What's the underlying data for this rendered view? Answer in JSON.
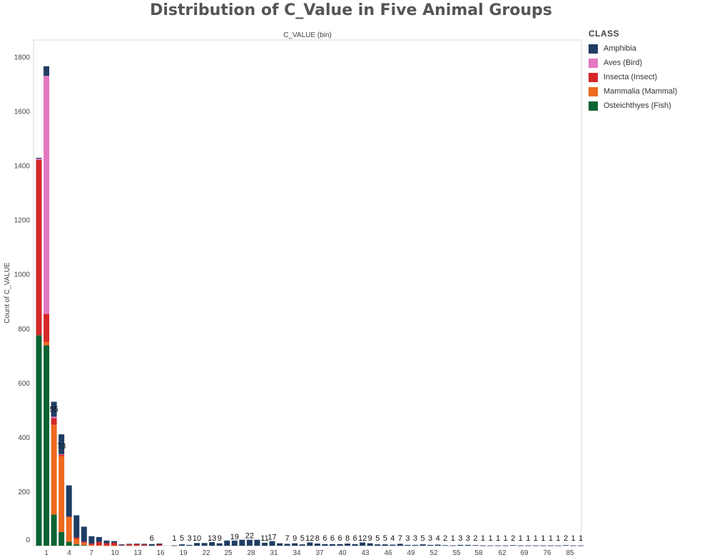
{
  "chart_data": {
    "type": "bar",
    "stacked": true,
    "title": "Distribution of C_Value in Five Animal Groups",
    "column_header": "C_VALUE (bin)",
    "ylabel": "Count of C_VALUE",
    "ylim": [
      0,
      1850
    ],
    "yticks": [
      0,
      200,
      400,
      600,
      800,
      1000,
      1200,
      1400,
      1600,
      1800
    ],
    "xtick_labels": [
      "1",
      "4",
      "7",
      "10",
      "13",
      "16",
      "19",
      "22",
      "25",
      "28",
      "31",
      "34",
      "37",
      "40",
      "43",
      "46",
      "49",
      "52",
      "55",
      "58",
      "62",
      "69",
      "76",
      "85"
    ],
    "grid": false,
    "legend": {
      "title": "CLASS",
      "position": "right",
      "entries": [
        {
          "name": "Amphibia",
          "color": "#1f3d64"
        },
        {
          "name": "Aves (Bird)",
          "color": "#e377c2"
        },
        {
          "name": "Insecta (Insect)",
          "color": "#d62728"
        },
        {
          "name": "Mammalia (Mammal)",
          "color": "#ee6a1e"
        },
        {
          "name": "Osteichthyes (Fish)",
          "color": "#0b6333"
        }
      ]
    },
    "series_order_bottom_to_top": [
      "Osteichthyes (Fish)",
      "Mammalia (Mammal)",
      "Insecta (Insect)",
      "Aves (Bird)",
      "Amphibia"
    ],
    "bars": [
      {
        "stack": {
          "Osteichthyes (Fish)": 775,
          "Mammalia (Mammal)": 0,
          "Insecta (Insect)": 645,
          "Aves (Bird)": 5,
          "Amphibia": 3
        }
      },
      {
        "stack": {
          "Osteichthyes (Fish)": 738,
          "Mammalia (Mammal)": 12,
          "Insecta (Insect)": 103,
          "Aves (Bird)": 877,
          "Amphibia": 35
        }
      },
      {
        "stack": {
          "Osteichthyes (Fish)": 115,
          "Mammalia (Mammal)": 330,
          "Insecta (Insect)": 25,
          "Aves (Bird)": 5,
          "Amphibia": 55
        },
        "label": "55"
      },
      {
        "stack": {
          "Osteichthyes (Fish)": 50,
          "Mammalia (Mammal)": 280,
          "Insecta (Insect)": 5,
          "Aves (Bird)": 2,
          "Amphibia": 73
        },
        "label": "73"
      },
      {
        "stack": {
          "Osteichthyes (Fish)": 15,
          "Mammalia (Mammal)": 90,
          "Insecta (Insect)": 2,
          "Aves (Bird)": 0,
          "Amphibia": 115
        }
      },
      {
        "stack": {
          "Osteichthyes (Fish)": 5,
          "Mammalia (Mammal)": 20,
          "Insecta (Insect)": 5,
          "Aves (Bird)": 0,
          "Amphibia": 82
        }
      },
      {
        "stack": {
          "Osteichthyes (Fish)": 2,
          "Mammalia (Mammal)": 8,
          "Insecta (Insect)": 5,
          "Aves (Bird)": 0,
          "Amphibia": 55
        }
      },
      {
        "stack": {
          "Osteichthyes (Fish)": 0,
          "Mammalia (Mammal)": 3,
          "Insecta (Insect)": 5,
          "Aves (Bird)": 0,
          "Amphibia": 27
        }
      },
      {
        "stack": {
          "Osteichthyes (Fish)": 0,
          "Mammalia (Mammal)": 2,
          "Insecta (Insect)": 12,
          "Aves (Bird)": 0,
          "Amphibia": 18
        }
      },
      {
        "stack": {
          "Osteichthyes (Fish)": 0,
          "Mammalia (Mammal)": 1,
          "Insecta (Insect)": 8,
          "Aves (Bird)": 0,
          "Amphibia": 10
        }
      },
      {
        "stack": {
          "Osteichthyes (Fish)": 0,
          "Mammalia (Mammal)": 1,
          "Insecta (Insect)": 10,
          "Aves (Bird)": 0,
          "Amphibia": 6
        }
      },
      {
        "stack": {
          "Osteichthyes (Fish)": 0,
          "Mammalia (Mammal)": 0,
          "Insecta (Insect)": 2,
          "Aves (Bird)": 0,
          "Amphibia": 3
        }
      },
      {
        "stack": {
          "Osteichthyes (Fish)": 0,
          "Mammalia (Mammal)": 0,
          "Insecta (Insect)": 5,
          "Aves (Bird)": 0,
          "Amphibia": 2
        }
      },
      {
        "stack": {
          "Osteichthyes (Fish)": 0,
          "Mammalia (Mammal)": 0,
          "Insecta (Insect)": 6,
          "Aves (Bird)": 0,
          "Amphibia": 2
        }
      },
      {
        "stack": {
          "Osteichthyes (Fish)": 0,
          "Mammalia (Mammal)": 0,
          "Insecta (Insect)": 4,
          "Aves (Bird)": 0,
          "Amphibia": 3
        }
      },
      {
        "stack": {
          "Osteichthyes (Fish)": 0,
          "Mammalia (Mammal)": 0,
          "Insecta (Insect)": 0,
          "Aves (Bird)": 0,
          "Amphibia": 6
        },
        "label": "6"
      },
      {
        "stack": {
          "Osteichthyes (Fish)": 0,
          "Mammalia (Mammal)": 0,
          "Insecta (Insect)": 4,
          "Aves (Bird)": 0,
          "Amphibia": 4
        }
      },
      {
        "stack": {
          "Osteichthyes (Fish)": 0,
          "Mammalia (Mammal)": 0,
          "Insecta (Insect)": 0,
          "Aves (Bird)": 0,
          "Amphibia": 0
        }
      },
      {
        "stack": {
          "Osteichthyes (Fish)": 0,
          "Mammalia (Mammal)": 0,
          "Insecta (Insect)": 0,
          "Aves (Bird)": 0,
          "Amphibia": 1
        },
        "label": "1"
      },
      {
        "stack": {
          "Osteichthyes (Fish)": 0,
          "Mammalia (Mammal)": 0,
          "Insecta (Insect)": 0,
          "Aves (Bird)": 0,
          "Amphibia": 5
        },
        "label": "5"
      },
      {
        "stack": {
          "Osteichthyes (Fish)": 0,
          "Mammalia (Mammal)": 0,
          "Insecta (Insect)": 0,
          "Aves (Bird)": 0,
          "Amphibia": 3
        },
        "label": "3"
      },
      {
        "stack": {
          "Osteichthyes (Fish)": 0,
          "Mammalia (Mammal)": 0,
          "Insecta (Insect)": 0,
          "Aves (Bird)": 0,
          "Amphibia": 10
        },
        "label": "10"
      },
      {
        "stack": {
          "Osteichthyes (Fish)": 0,
          "Mammalia (Mammal)": 0,
          "Insecta (Insect)": 0,
          "Aves (Bird)": 0,
          "Amphibia": 10
        }
      },
      {
        "stack": {
          "Osteichthyes (Fish)": 0,
          "Mammalia (Mammal)": 0,
          "Insecta (Insect)": 0,
          "Aves (Bird)": 0,
          "Amphibia": 13
        },
        "label": "13"
      },
      {
        "stack": {
          "Osteichthyes (Fish)": 0,
          "Mammalia (Mammal)": 0,
          "Insecta (Insect)": 0,
          "Aves (Bird)": 0,
          "Amphibia": 9
        },
        "label": "9"
      },
      {
        "stack": {
          "Osteichthyes (Fish)": 0,
          "Mammalia (Mammal)": 0,
          "Insecta (Insect)": 0,
          "Aves (Bird)": 0,
          "Amphibia": 19
        }
      },
      {
        "stack": {
          "Osteichthyes (Fish)": 0,
          "Mammalia (Mammal)": 0,
          "Insecta (Insect)": 0,
          "Aves (Bird)": 0,
          "Amphibia": 19
        },
        "label": "19"
      },
      {
        "stack": {
          "Osteichthyes (Fish)": 0,
          "Mammalia (Mammal)": 0,
          "Insecta (Insect)": 0,
          "Aves (Bird)": 0,
          "Amphibia": 22
        }
      },
      {
        "stack": {
          "Osteichthyes (Fish)": 0,
          "Mammalia (Mammal)": 0,
          "Insecta (Insect)": 0,
          "Aves (Bird)": 0,
          "Amphibia": 22
        },
        "label": "22"
      },
      {
        "stack": {
          "Osteichthyes (Fish)": 0,
          "Mammalia (Mammal)": 0,
          "Insecta (Insect)": 0,
          "Aves (Bird)": 0,
          "Amphibia": 22
        }
      },
      {
        "stack": {
          "Osteichthyes (Fish)": 0,
          "Mammalia (Mammal)": 0,
          "Insecta (Insect)": 0,
          "Aves (Bird)": 0,
          "Amphibia": 11
        },
        "label": "11"
      },
      {
        "stack": {
          "Osteichthyes (Fish)": 0,
          "Mammalia (Mammal)": 0,
          "Insecta (Insect)": 0,
          "Aves (Bird)": 0,
          "Amphibia": 17
        },
        "label": "17"
      },
      {
        "stack": {
          "Osteichthyes (Fish)": 0,
          "Mammalia (Mammal)": 0,
          "Insecta (Insect)": 0,
          "Aves (Bird)": 0,
          "Amphibia": 9
        }
      },
      {
        "stack": {
          "Osteichthyes (Fish)": 0,
          "Mammalia (Mammal)": 0,
          "Insecta (Insect)": 0,
          "Aves (Bird)": 0,
          "Amphibia": 7
        },
        "label": "7"
      },
      {
        "stack": {
          "Osteichthyes (Fish)": 0,
          "Mammalia (Mammal)": 0,
          "Insecta (Insect)": 0,
          "Aves (Bird)": 0,
          "Amphibia": 9
        },
        "label": "9"
      },
      {
        "stack": {
          "Osteichthyes (Fish)": 0,
          "Mammalia (Mammal)": 0,
          "Insecta (Insect)": 0,
          "Aves (Bird)": 0,
          "Amphibia": 5
        },
        "label": "5"
      },
      {
        "stack": {
          "Osteichthyes (Fish)": 0,
          "Mammalia (Mammal)": 0,
          "Insecta (Insect)": 0,
          "Aves (Bird)": 0,
          "Amphibia": 12
        },
        "label": "12"
      },
      {
        "stack": {
          "Osteichthyes (Fish)": 0,
          "Mammalia (Mammal)": 0,
          "Insecta (Insect)": 0,
          "Aves (Bird)": 0,
          "Amphibia": 8
        },
        "label": "8"
      },
      {
        "stack": {
          "Osteichthyes (Fish)": 0,
          "Mammalia (Mammal)": 0,
          "Insecta (Insect)": 0,
          "Aves (Bird)": 0,
          "Amphibia": 6
        },
        "label": "6"
      },
      {
        "stack": {
          "Osteichthyes (Fish)": 0,
          "Mammalia (Mammal)": 0,
          "Insecta (Insect)": 0,
          "Aves (Bird)": 0,
          "Amphibia": 6
        },
        "label": "6"
      },
      {
        "stack": {
          "Osteichthyes (Fish)": 0,
          "Mammalia (Mammal)": 0,
          "Insecta (Insect)": 0,
          "Aves (Bird)": 0,
          "Amphibia": 6
        },
        "label": "6"
      },
      {
        "stack": {
          "Osteichthyes (Fish)": 0,
          "Mammalia (Mammal)": 0,
          "Insecta (Insect)": 0,
          "Aves (Bird)": 0,
          "Amphibia": 8
        },
        "label": "8"
      },
      {
        "stack": {
          "Osteichthyes (Fish)": 0,
          "Mammalia (Mammal)": 0,
          "Insecta (Insect)": 0,
          "Aves (Bird)": 0,
          "Amphibia": 6
        },
        "label": "6"
      },
      {
        "stack": {
          "Osteichthyes (Fish)": 0,
          "Mammalia (Mammal)": 0,
          "Insecta (Insect)": 0,
          "Aves (Bird)": 0,
          "Amphibia": 12
        },
        "label": "12"
      },
      {
        "stack": {
          "Osteichthyes (Fish)": 0,
          "Mammalia (Mammal)": 0,
          "Insecta (Insect)": 0,
          "Aves (Bird)": 0,
          "Amphibia": 9
        },
        "label": "9"
      },
      {
        "stack": {
          "Osteichthyes (Fish)": 0,
          "Mammalia (Mammal)": 0,
          "Insecta (Insect)": 0,
          "Aves (Bird)": 0,
          "Amphibia": 5
        },
        "label": "5"
      },
      {
        "stack": {
          "Osteichthyes (Fish)": 0,
          "Mammalia (Mammal)": 0,
          "Insecta (Insect)": 0,
          "Aves (Bird)": 0,
          "Amphibia": 5
        },
        "label": "5"
      },
      {
        "stack": {
          "Osteichthyes (Fish)": 0,
          "Mammalia (Mammal)": 0,
          "Insecta (Insect)": 0,
          "Aves (Bird)": 0,
          "Amphibia": 4
        },
        "label": "4"
      },
      {
        "stack": {
          "Osteichthyes (Fish)": 0,
          "Mammalia (Mammal)": 0,
          "Insecta (Insect)": 0,
          "Aves (Bird)": 0,
          "Amphibia": 7
        },
        "label": "7"
      },
      {
        "stack": {
          "Osteichthyes (Fish)": 0,
          "Mammalia (Mammal)": 0,
          "Insecta (Insect)": 0,
          "Aves (Bird)": 0,
          "Amphibia": 3
        },
        "label": "3"
      },
      {
        "stack": {
          "Osteichthyes (Fish)": 0,
          "Mammalia (Mammal)": 0,
          "Insecta (Insect)": 0,
          "Aves (Bird)": 0,
          "Amphibia": 3
        },
        "label": "3"
      },
      {
        "stack": {
          "Osteichthyes (Fish)": 0,
          "Mammalia (Mammal)": 0,
          "Insecta (Insect)": 0,
          "Aves (Bird)": 0,
          "Amphibia": 5
        },
        "label": "5"
      },
      {
        "stack": {
          "Osteichthyes (Fish)": 0,
          "Mammalia (Mammal)": 0,
          "Insecta (Insect)": 0,
          "Aves (Bird)": 0,
          "Amphibia": 3
        },
        "label": "3"
      },
      {
        "stack": {
          "Osteichthyes (Fish)": 0,
          "Mammalia (Mammal)": 0,
          "Insecta (Insect)": 0,
          "Aves (Bird)": 0,
          "Amphibia": 4
        },
        "label": "4"
      },
      {
        "stack": {
          "Osteichthyes (Fish)": 0,
          "Mammalia (Mammal)": 0,
          "Insecta (Insect)": 0,
          "Aves (Bird)": 0,
          "Amphibia": 2
        },
        "label": "2"
      },
      {
        "stack": {
          "Osteichthyes (Fish)": 0,
          "Mammalia (Mammal)": 0,
          "Insecta (Insect)": 0,
          "Aves (Bird)": 0,
          "Amphibia": 1
        },
        "label": "1"
      },
      {
        "stack": {
          "Osteichthyes (Fish)": 0,
          "Mammalia (Mammal)": 0,
          "Insecta (Insect)": 0,
          "Aves (Bird)": 0,
          "Amphibia": 3
        },
        "label": "3"
      },
      {
        "stack": {
          "Osteichthyes (Fish)": 0,
          "Mammalia (Mammal)": 0,
          "Insecta (Insect)": 0,
          "Aves (Bird)": 0,
          "Amphibia": 3
        },
        "label": "3"
      },
      {
        "stack": {
          "Osteichthyes (Fish)": 0,
          "Mammalia (Mammal)": 0,
          "Insecta (Insect)": 0,
          "Aves (Bird)": 0,
          "Amphibia": 2
        },
        "label": "2"
      },
      {
        "stack": {
          "Osteichthyes (Fish)": 0,
          "Mammalia (Mammal)": 0,
          "Insecta (Insect)": 0,
          "Aves (Bird)": 0,
          "Amphibia": 1
        },
        "label": "1"
      },
      {
        "stack": {
          "Osteichthyes (Fish)": 0,
          "Mammalia (Mammal)": 0,
          "Insecta (Insect)": 0,
          "Aves (Bird)": 0,
          "Amphibia": 1
        },
        "label": "1"
      },
      {
        "stack": {
          "Osteichthyes (Fish)": 0,
          "Mammalia (Mammal)": 0,
          "Insecta (Insect)": 0,
          "Aves (Bird)": 0,
          "Amphibia": 1
        },
        "label": "1"
      },
      {
        "stack": {
          "Osteichthyes (Fish)": 0,
          "Mammalia (Mammal)": 0,
          "Insecta (Insect)": 0,
          "Aves (Bird)": 0,
          "Amphibia": 1
        },
        "label": "1"
      },
      {
        "stack": {
          "Osteichthyes (Fish)": 0,
          "Mammalia (Mammal)": 0,
          "Insecta (Insect)": 0,
          "Aves (Bird)": 0,
          "Amphibia": 2
        },
        "label": "2"
      },
      {
        "stack": {
          "Osteichthyes (Fish)": 0,
          "Mammalia (Mammal)": 0,
          "Insecta (Insect)": 0,
          "Aves (Bird)": 0,
          "Amphibia": 1
        },
        "label": "1"
      },
      {
        "stack": {
          "Osteichthyes (Fish)": 0,
          "Mammalia (Mammal)": 0,
          "Insecta (Insect)": 0,
          "Aves (Bird)": 0,
          "Amphibia": 1
        },
        "label": "1"
      },
      {
        "stack": {
          "Osteichthyes (Fish)": 0,
          "Mammalia (Mammal)": 0,
          "Insecta (Insect)": 0,
          "Aves (Bird)": 0,
          "Amphibia": 1
        },
        "label": "1"
      },
      {
        "stack": {
          "Osteichthyes (Fish)": 0,
          "Mammalia (Mammal)": 0,
          "Insecta (Insect)": 0,
          "Aves (Bird)": 0,
          "Amphibia": 1
        },
        "label": "1"
      },
      {
        "stack": {
          "Osteichthyes (Fish)": 0,
          "Mammalia (Mammal)": 0,
          "Insecta (Insect)": 0,
          "Aves (Bird)": 0,
          "Amphibia": 1
        },
        "label": "1"
      },
      {
        "stack": {
          "Osteichthyes (Fish)": 0,
          "Mammalia (Mammal)": 0,
          "Insecta (Insect)": 0,
          "Aves (Bird)": 0,
          "Amphibia": 1
        },
        "label": "1"
      },
      {
        "stack": {
          "Osteichthyes (Fish)": 0,
          "Mammalia (Mammal)": 0,
          "Insecta (Insect)": 0,
          "Aves (Bird)": 0,
          "Amphibia": 2
        },
        "label": "2"
      },
      {
        "stack": {
          "Osteichthyes (Fish)": 0,
          "Mammalia (Mammal)": 0,
          "Insecta (Insect)": 0,
          "Aves (Bird)": 0,
          "Amphibia": 1
        },
        "label": "1"
      },
      {
        "stack": {
          "Osteichthyes (Fish)": 0,
          "Mammalia (Mammal)": 0,
          "Insecta (Insect)": 0,
          "Aves (Bird)": 0,
          "Amphibia": 1
        },
        "label": "1"
      }
    ]
  }
}
